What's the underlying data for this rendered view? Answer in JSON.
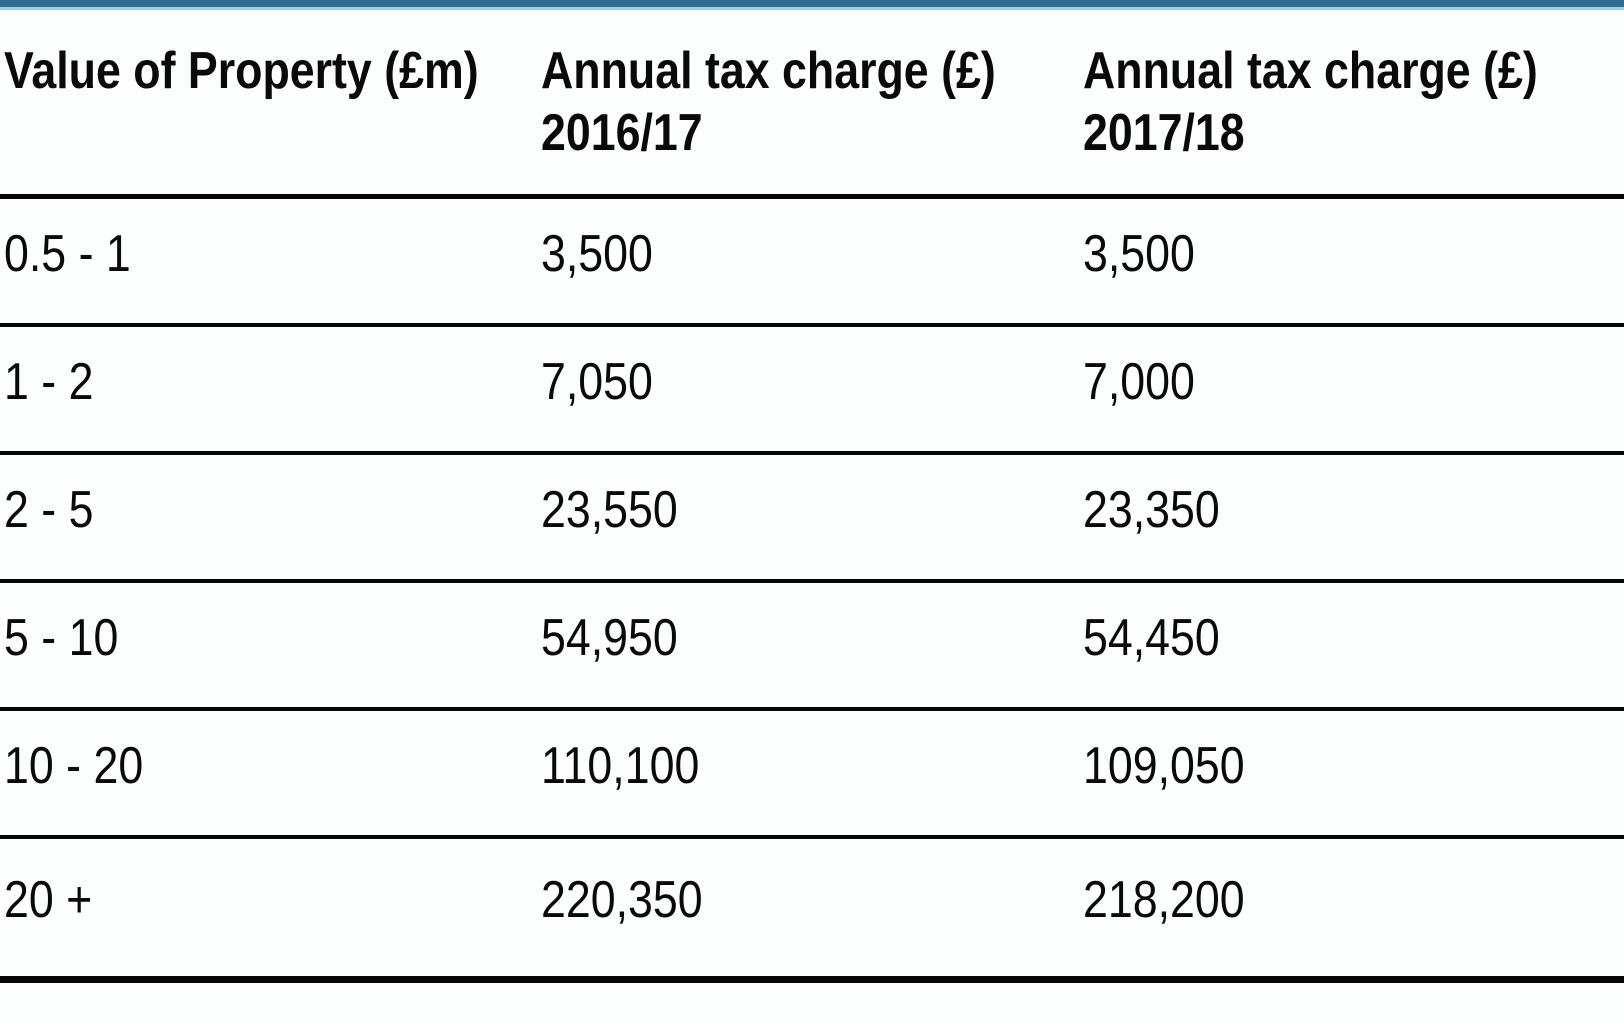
{
  "window": {
    "top_bar_color": "#2e6f91",
    "top_bar_accent_color": "#a3ccdd",
    "rule_color": "#070707"
  },
  "table": {
    "headers": [
      {
        "line1": "Value of Property (£m)",
        "line2": ""
      },
      {
        "line1": "Annual tax charge (£)",
        "line2": "2016/17"
      },
      {
        "line1": "Annual tax charge (£)",
        "line2": "2017/18"
      }
    ],
    "rows": [
      {
        "value_band": "0.5 - 1",
        "charge_2016_17": "3,500",
        "charge_2017_18": "3,500"
      },
      {
        "value_band": "1 - 2",
        "charge_2016_17": "7,050",
        "charge_2017_18": "7,000"
      },
      {
        "value_band": "2 - 5",
        "charge_2016_17": "23,550",
        "charge_2017_18": "23,350"
      },
      {
        "value_band": "5 - 10",
        "charge_2016_17": "54,950",
        "charge_2017_18": "54,450"
      },
      {
        "value_band": "10 - 20",
        "charge_2016_17": "110,100",
        "charge_2017_18": "109,050"
      },
      {
        "value_band": "20 +",
        "charge_2016_17": "220,350",
        "charge_2017_18": "218,200"
      }
    ]
  },
  "chart_data": {
    "type": "table",
    "title": "",
    "columns": [
      "Value of Property (£m)",
      "Annual tax charge (£) 2016/17",
      "Annual tax charge (£) 2017/18"
    ],
    "rows": [
      [
        "0.5 - 1",
        3500,
        3500
      ],
      [
        "1 - 2",
        7050,
        7000
      ],
      [
        "2 - 5",
        23550,
        23350
      ],
      [
        "5 - 10",
        54950,
        54450
      ],
      [
        "10 - 20",
        110100,
        109050
      ],
      [
        "20 +",
        220350,
        218200
      ]
    ]
  }
}
